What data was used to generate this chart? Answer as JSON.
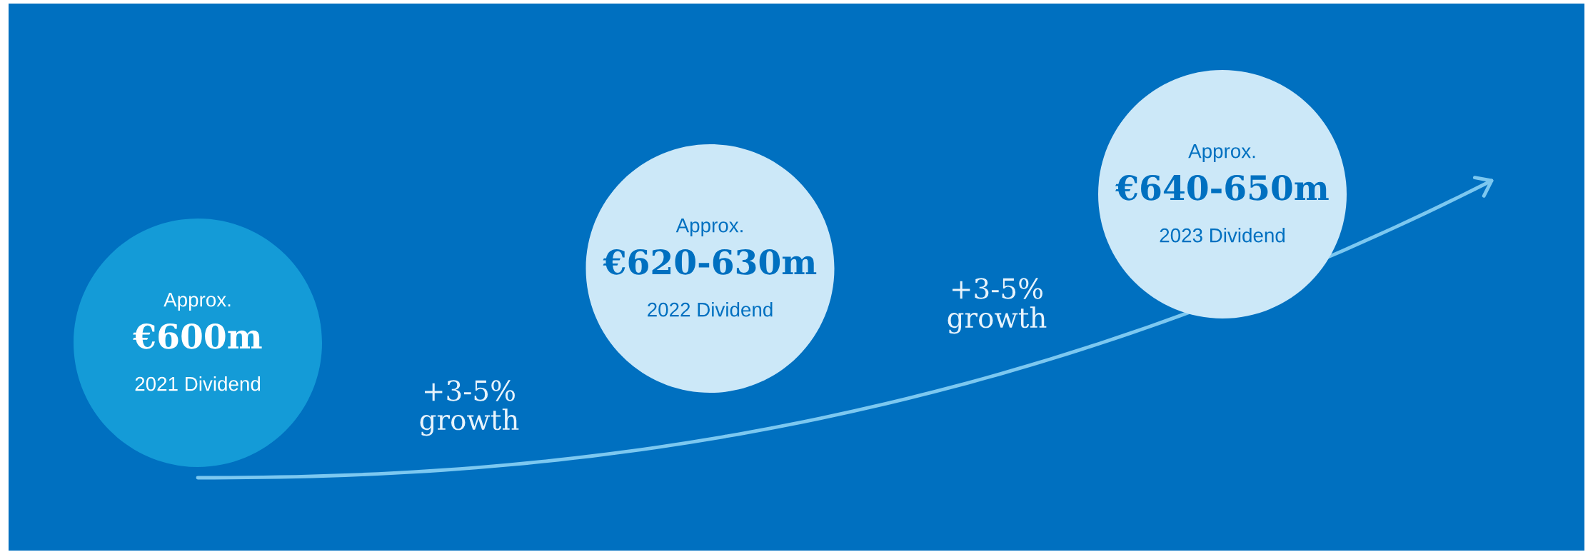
{
  "chart_data": {
    "type": "other",
    "categories": [
      "2021 Dividend",
      "2022 Dividend",
      "2023 Dividend"
    ],
    "values": [
      600,
      620,
      640
    ],
    "value_labels": [
      "€600m",
      "€620-630m",
      "€640-650m"
    ],
    "colors": [
      "#149bd7",
      "#cce8f8",
      "#cce8f8"
    ],
    "annotations": [
      "Approx.",
      "Approx.",
      "Approx.",
      "+3-5%\ngrowth",
      "+3-5%\ngrowth"
    ]
  }
}
